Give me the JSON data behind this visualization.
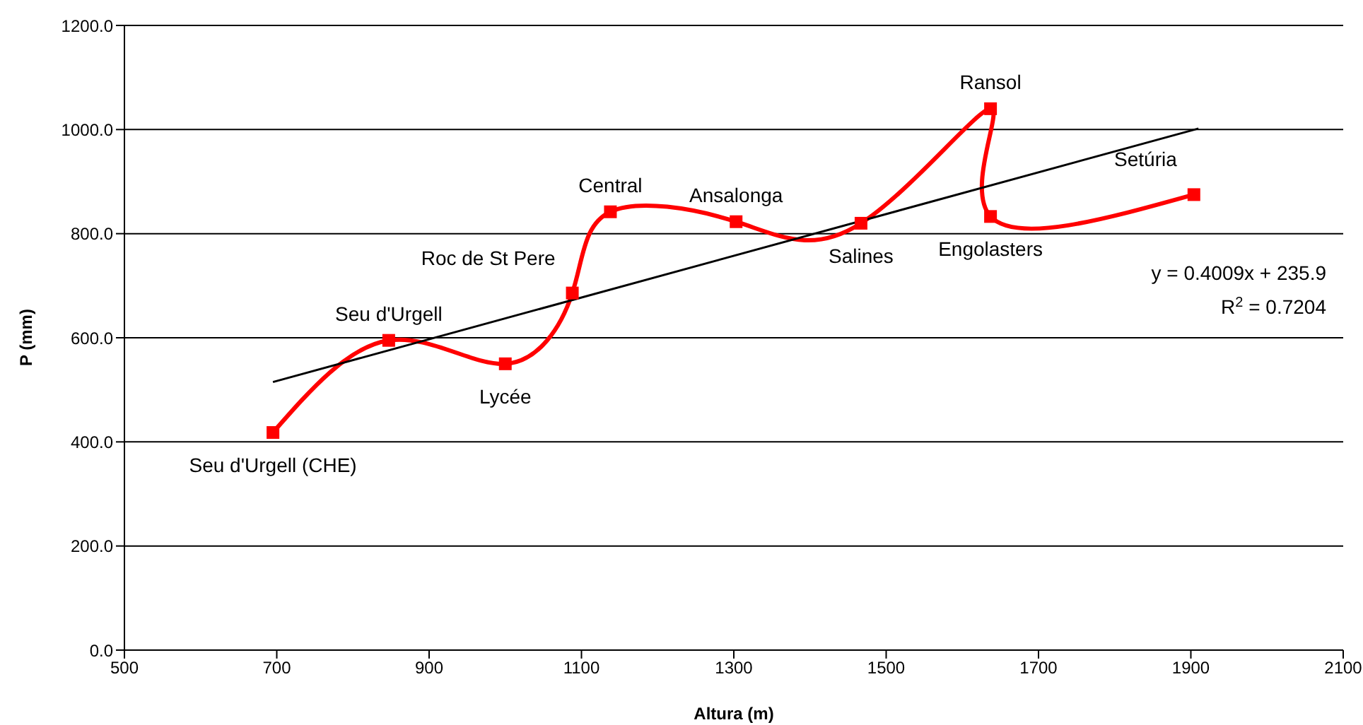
{
  "chart_data": {
    "type": "line",
    "xlabel": "Altura (m)",
    "ylabel": "P (mm)",
    "xlim": [
      500,
      2100
    ],
    "xticks": [
      500,
      700,
      900,
      1100,
      1300,
      1500,
      1700,
      1900,
      2100
    ],
    "ylim": [
      0,
      1200
    ],
    "yticks": [
      {
        "value": 0,
        "label": "0.0"
      },
      {
        "value": 200,
        "label": "200.0"
      },
      {
        "value": 400,
        "label": "400.0"
      },
      {
        "value": 600,
        "label": "600.0"
      },
      {
        "value": 800,
        "label": "800.0"
      },
      {
        "value": 1000,
        "label": "1000.0"
      },
      {
        "value": 1200,
        "label": "1200.0"
      }
    ],
    "grid": "y",
    "series": [
      {
        "color": "#ff0000",
        "marker": "square",
        "x": [
          695,
          847,
          1000,
          1088,
          1138,
          1303,
          1467,
          1637,
          1637,
          1904
        ],
        "values": [
          418,
          595,
          550,
          686,
          842,
          823,
          820,
          1040,
          833,
          875
        ]
      },
      {
        "color": "#000000",
        "marker": "none",
        "x": [
          695,
          1910
        ],
        "values": [
          515,
          1002
        ]
      }
    ],
    "annotations": [
      {
        "text": "Seu d'Urgell (CHE)",
        "x": 695,
        "y": 418
      },
      {
        "text": "Seu d'Urgell",
        "x": 847,
        "y": 595
      },
      {
        "text": "Lycée",
        "x": 1000,
        "y": 550
      },
      {
        "text": "Roc de St Pere",
        "x": 1088,
        "y": 686
      },
      {
        "text": "Central",
        "x": 1138,
        "y": 842
      },
      {
        "text": "Ansalonga",
        "x": 1303,
        "y": 823
      },
      {
        "text": "Salines",
        "x": 1467,
        "y": 820
      },
      {
        "text": "Ransol",
        "x": 1637,
        "y": 1040
      },
      {
        "text": "Engolasters",
        "x": 1637,
        "y": 833
      },
      {
        "text": "Setúria",
        "x": 1904,
        "y": 875
      },
      "y = 0.4009x + 235.9",
      "R$^{2}$ = 0.7204"
    ]
  }
}
